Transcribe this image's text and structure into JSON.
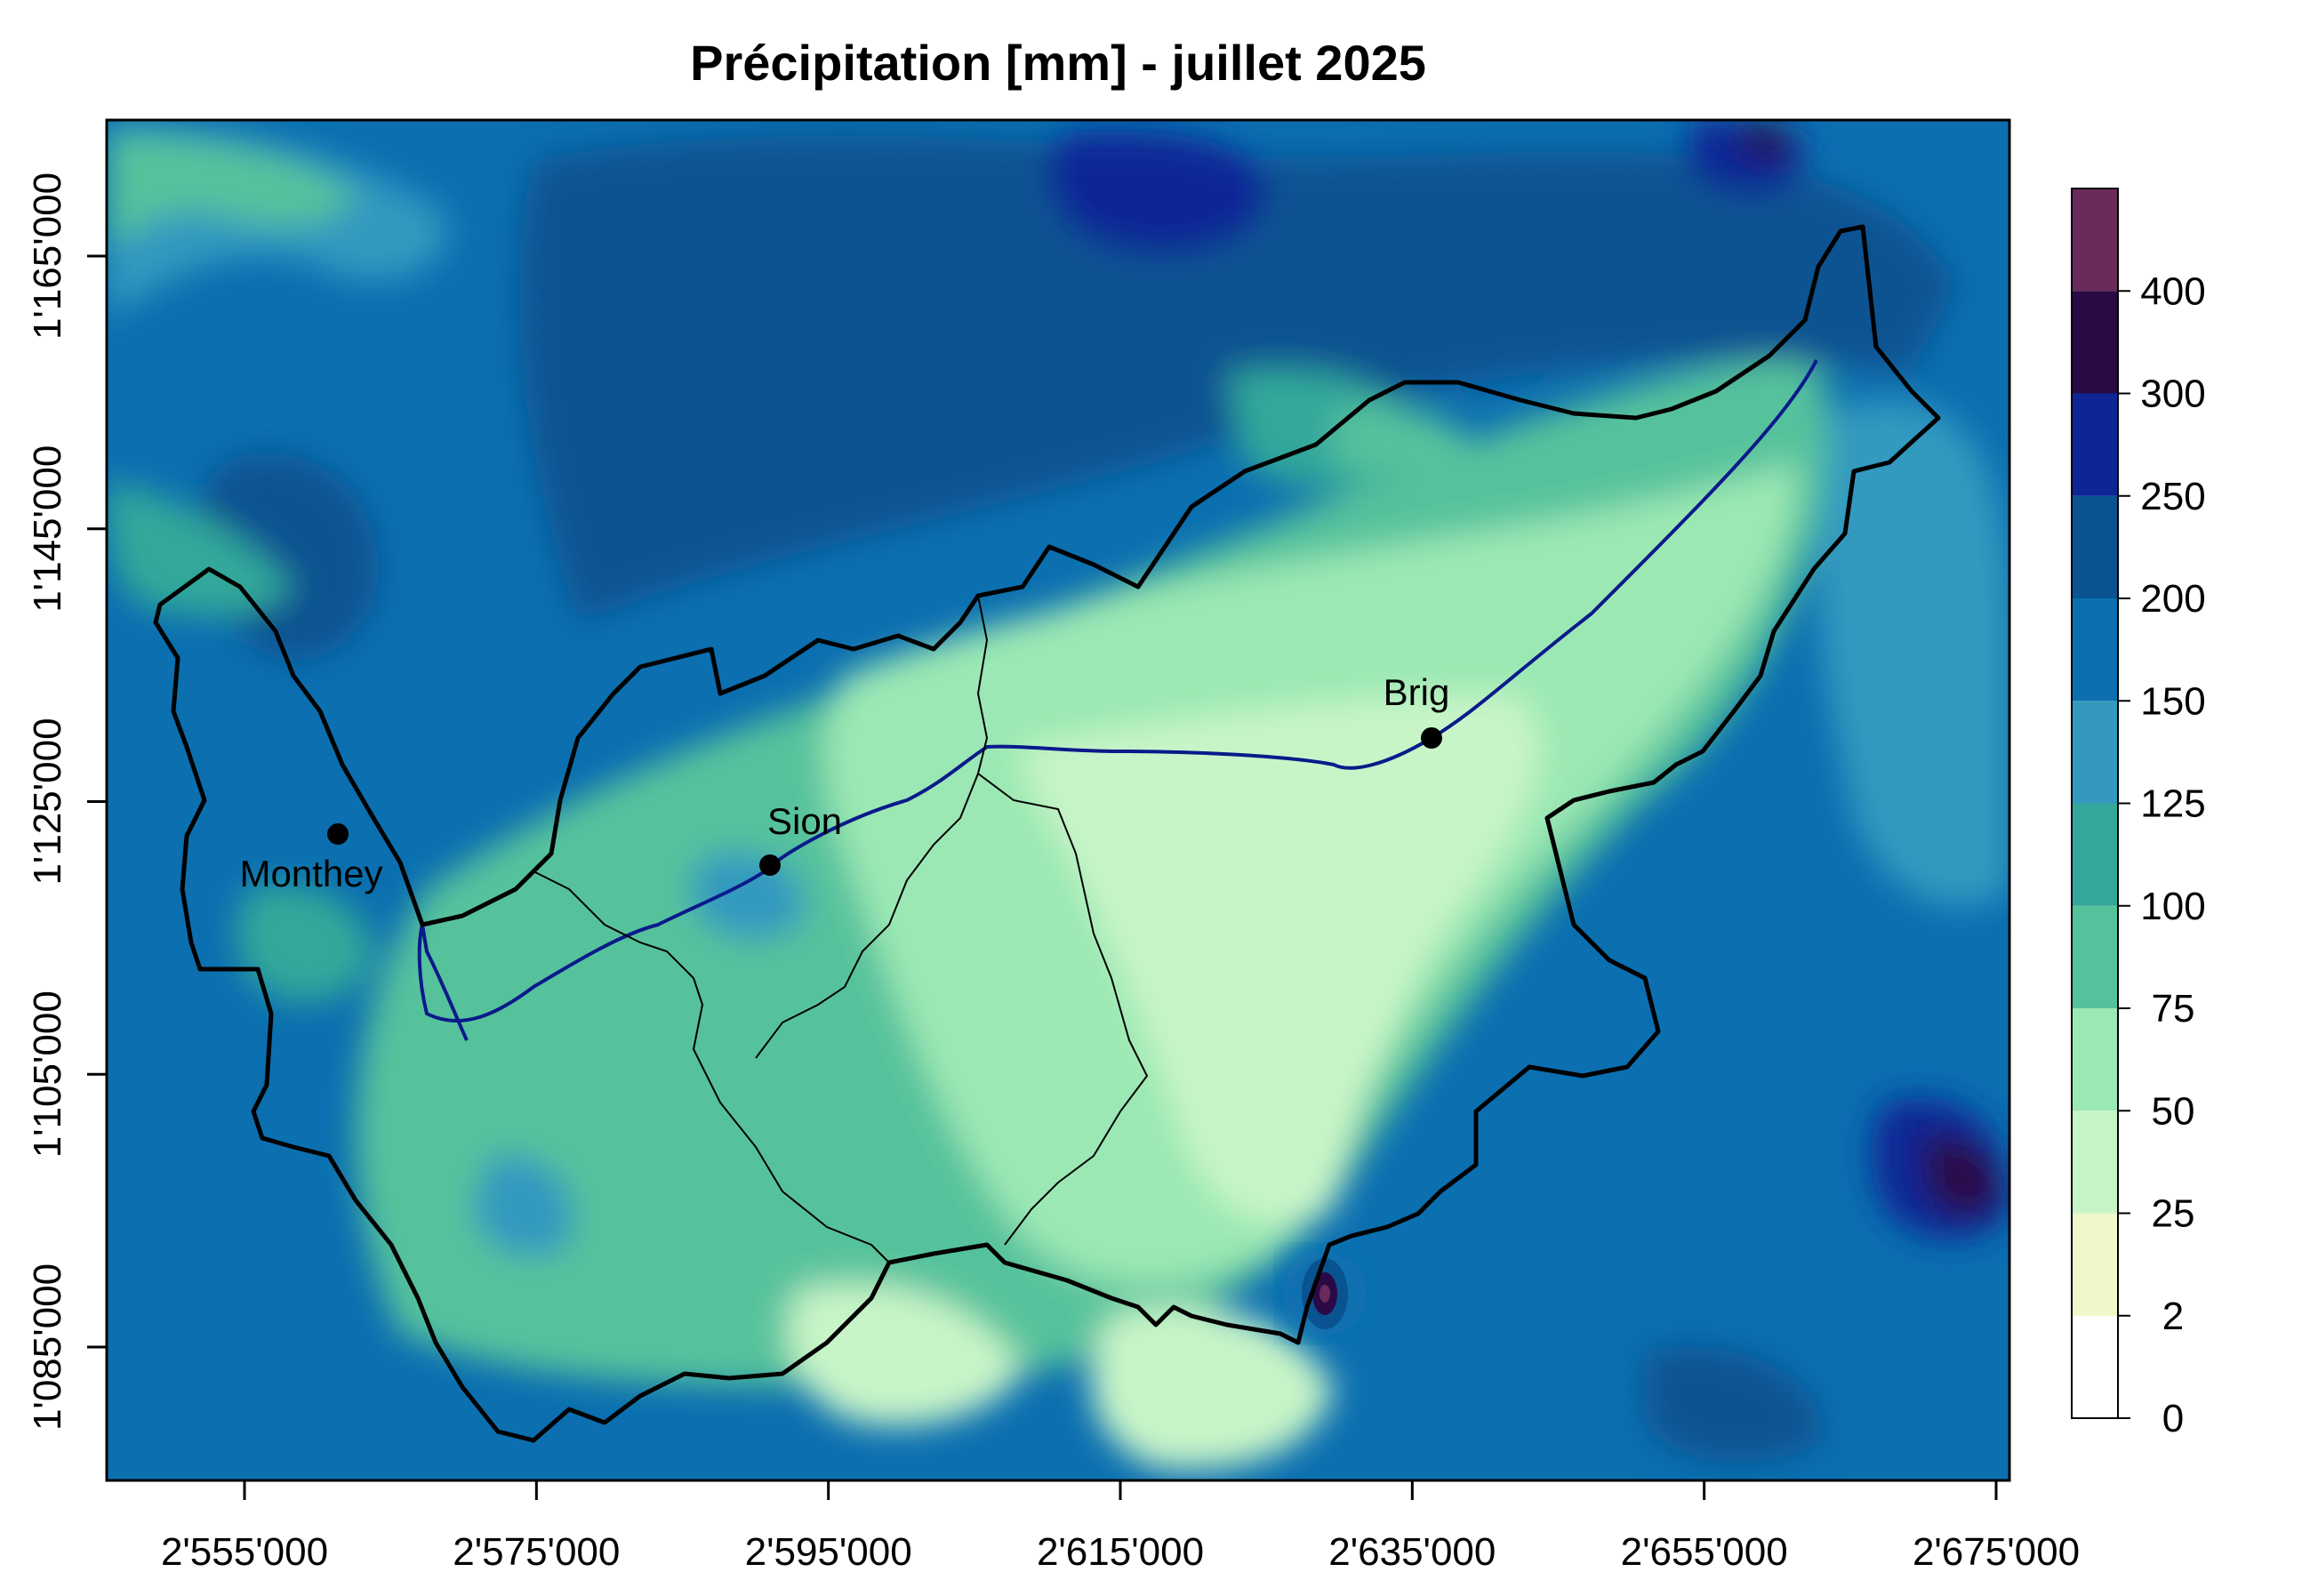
{
  "title": "Précipitation [mm] - juillet 2025",
  "map": {
    "x_axis": {
      "ticks": [
        {
          "value": 2555000,
          "label": "2'555'000"
        },
        {
          "value": 2575000,
          "label": "2'575'000"
        },
        {
          "value": 2595000,
          "label": "2'595'000"
        },
        {
          "value": 2615000,
          "label": "2'615'000"
        },
        {
          "value": 2635000,
          "label": "2'635'000"
        },
        {
          "value": 2655000,
          "label": "2'655'000"
        },
        {
          "value": 2675000,
          "label": "2'675'000"
        }
      ]
    },
    "y_axis": {
      "ticks": [
        {
          "value": 1085000,
          "label": "1'085'000"
        },
        {
          "value": 1105000,
          "label": "1'105'000"
        },
        {
          "value": 1125000,
          "label": "1'125'000"
        },
        {
          "value": 1145000,
          "label": "1'145'000"
        },
        {
          "value": 1165000,
          "label": "1'165'000"
        }
      ]
    },
    "cities": [
      {
        "name": "Monthey",
        "label": "Monthey"
      },
      {
        "name": "Sion",
        "label": "Sion"
      },
      {
        "name": "Brig",
        "label": "Brig"
      }
    ]
  },
  "legend": {
    "bins": [
      {
        "from": 0,
        "to": 2,
        "color": "#ffffff"
      },
      {
        "from": 2,
        "to": 25,
        "color": "#eef8c8"
      },
      {
        "from": 25,
        "to": 50,
        "color": "#c8f5c8"
      },
      {
        "from": 50,
        "to": 75,
        "color": "#9be8b4"
      },
      {
        "from": 75,
        "to": 100,
        "color": "#56c29c"
      },
      {
        "from": 100,
        "to": 125,
        "color": "#33a89a"
      },
      {
        "from": 125,
        "to": 150,
        "color": "#3399bf"
      },
      {
        "from": 150,
        "to": 200,
        "color": "#0b6fb0"
      },
      {
        "from": 200,
        "to": 250,
        "color": "#0a5391"
      },
      {
        "from": 250,
        "to": 300,
        "color": "#0e2596"
      },
      {
        "from": 300,
        "to": 400,
        "color": "#2a0a45"
      },
      {
        "from": 400,
        "to": 500,
        "color": "#6a2a5a"
      }
    ],
    "labels": [
      {
        "value": 0,
        "label": "0"
      },
      {
        "value": 2,
        "label": "2"
      },
      {
        "value": 25,
        "label": "25"
      },
      {
        "value": 50,
        "label": "50"
      },
      {
        "value": 75,
        "label": "75"
      },
      {
        "value": 100,
        "label": "100"
      },
      {
        "value": 125,
        "label": "125"
      },
      {
        "value": 150,
        "label": "150"
      },
      {
        "value": 200,
        "label": "200"
      },
      {
        "value": 250,
        "label": "250"
      },
      {
        "value": 300,
        "label": "300"
      },
      {
        "value": 400,
        "label": "400"
      }
    ]
  }
}
